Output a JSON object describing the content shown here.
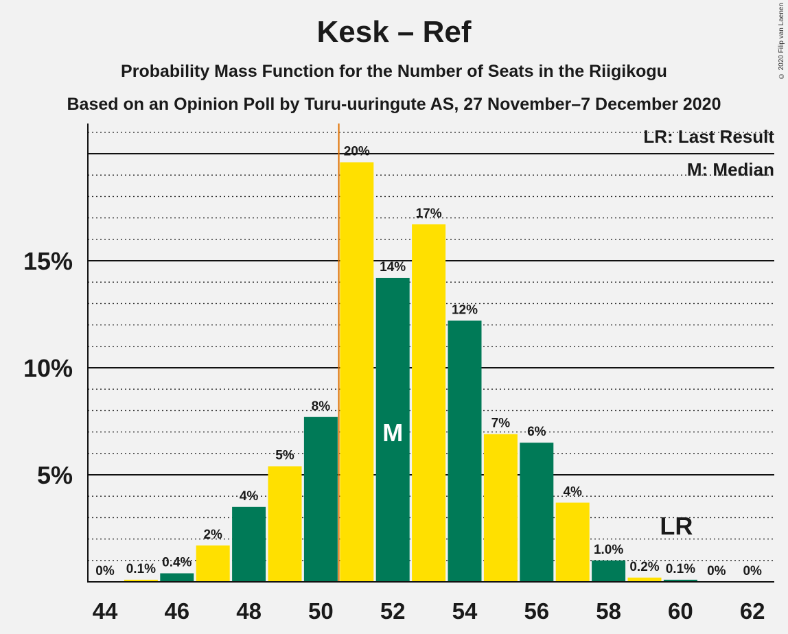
{
  "header": {
    "title": "Kesk – Ref",
    "subtitle1": "Probability Mass Function for the Number of Seats in the Riigikogu",
    "subtitle2": "Based on an Opinion Poll by Turu-uuringute AS, 27 November–7 December 2020",
    "copyright": "© 2020 Filip van Laenen"
  },
  "legend": {
    "lr": "LR: Last Result",
    "m": "M: Median"
  },
  "colors": {
    "yellow": "#ffe000",
    "green": "#007a57",
    "last_result_line": "#e07000"
  },
  "chart_data": {
    "type": "bar",
    "title": "Kesk – Ref",
    "xlabel": "",
    "ylabel": "",
    "ylim": [
      0,
      21.5
    ],
    "x_tick_labels": [
      "44",
      "46",
      "48",
      "50",
      "52",
      "54",
      "56",
      "58",
      "60",
      "62"
    ],
    "y_tick_labels": [
      "5%",
      "10%",
      "15%"
    ],
    "categories": [
      44,
      45,
      46,
      47,
      48,
      49,
      50,
      51,
      52,
      53,
      54,
      55,
      56,
      57,
      58,
      59,
      60,
      61,
      62
    ],
    "values": [
      0,
      0.1,
      0.4,
      1.7,
      3.5,
      5.4,
      7.7,
      19.6,
      14.2,
      16.7,
      12.2,
      6.9,
      6.5,
      3.7,
      1.0,
      0.2,
      0.1,
      0,
      0
    ],
    "labels": [
      "0%",
      "0.1%",
      "0.4%",
      "2%",
      "4%",
      "5%",
      "8%",
      "20%",
      "14%",
      "17%",
      "12%",
      "7%",
      "6%",
      "4%",
      "1.0%",
      "0.2%",
      "0.1%",
      "0%",
      "0%"
    ],
    "median": 52,
    "median_label": "M",
    "last_result": 60,
    "last_result_label": "LR",
    "threshold_line": 50.5,
    "grid": true
  }
}
